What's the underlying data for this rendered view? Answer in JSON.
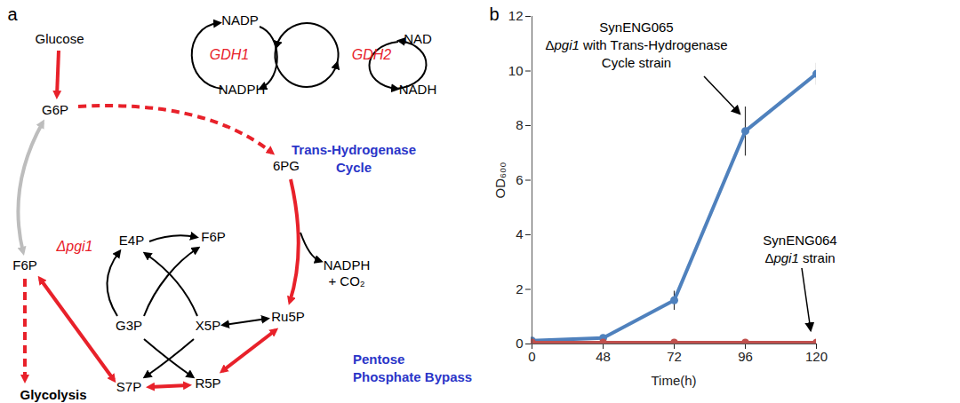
{
  "diagram": {
    "panel_label": "a",
    "metabolites": [
      "Glucose",
      "G6P",
      "6PG",
      "F6P",
      "E4P",
      "F6P",
      "G3P",
      "X5P",
      "Ru5P",
      "R5P",
      "S7P"
    ],
    "glycolysis": "Glycolysis",
    "products": [
      "NADPH",
      "+ CO₂"
    ],
    "cofactors": [
      "NADP",
      "NADPH",
      "NAD",
      "NADH"
    ],
    "enzymes": [
      "GDH1",
      "GDH2"
    ],
    "deletion": [
      "Δ",
      "pgi1"
    ],
    "modules": [
      [
        "Trans-Hydrogenase",
        "Cycle"
      ],
      [
        "Pentose",
        "Phosphate Bypass"
      ]
    ]
  },
  "chart_data": {
    "type": "line",
    "panel_label": "b",
    "categories": [
      "0",
      "48",
      "72",
      "96",
      "120"
    ],
    "x_label": "Time(h)",
    "y_label": "OD₆₀₀",
    "ylim": [
      0,
      12
    ],
    "yticks": [
      0,
      2,
      4,
      6,
      8,
      10,
      12
    ],
    "marker": "circle",
    "series": [
      {
        "color": "#4f81bd",
        "values": [
          0.12,
          0.22,
          1.6,
          7.8,
          9.9
        ],
        "error": [
          0,
          0,
          0.35,
          0.9,
          0.4
        ],
        "annotation": [
          [
            "SynENG065"
          ],
          [
            "Δ",
            "pgi1",
            " with Trans-Hydrogenase"
          ],
          [
            "Cycle strain"
          ]
        ]
      },
      {
        "color": "#c0504d",
        "values": [
          0.05,
          0.05,
          0.05,
          0.05,
          0.05
        ],
        "annotation": [
          [
            "SynENG064"
          ],
          [
            "Δ",
            "pgi1",
            " strain"
          ]
        ]
      }
    ]
  }
}
